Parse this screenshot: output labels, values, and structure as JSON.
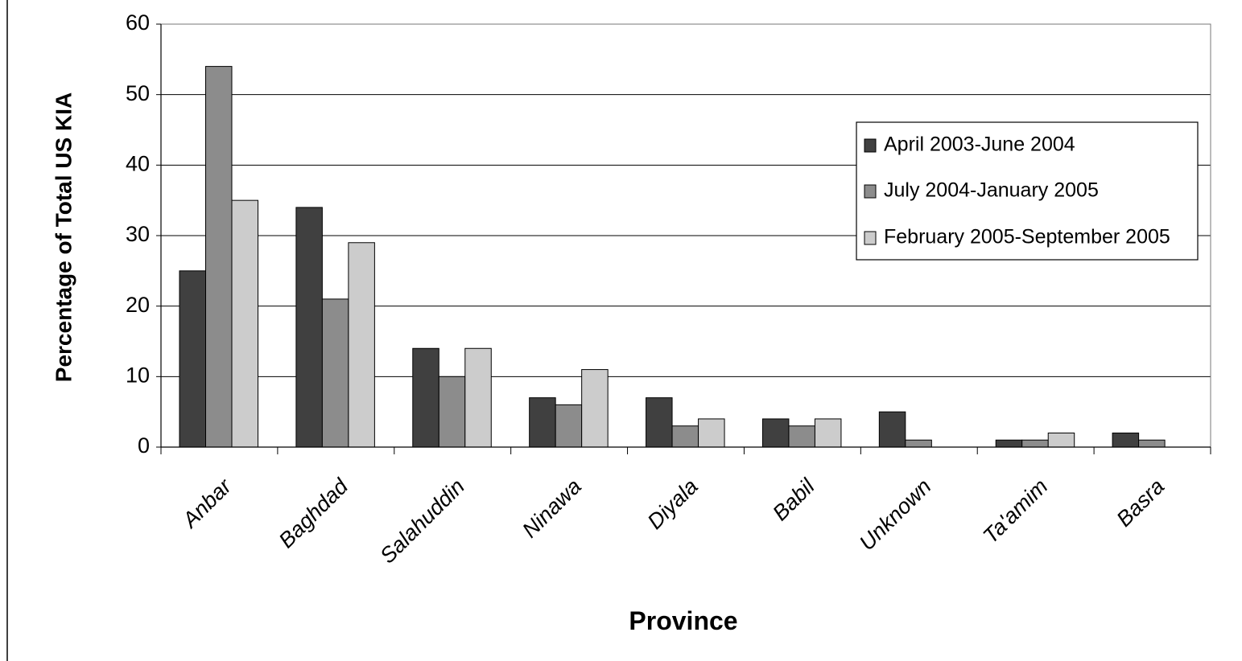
{
  "chart_data": {
    "type": "bar",
    "title": "",
    "xlabel": "Province",
    "ylabel": "Percentage of Total US KIA",
    "ylim": [
      0,
      60
    ],
    "yticks": [
      0,
      10,
      20,
      30,
      40,
      50,
      60
    ],
    "grid": true,
    "legend_position": "right",
    "categories": [
      "Anbar",
      "Baghdad",
      "Salahuddin",
      "Ninawa",
      "Diyala",
      "Babil",
      "Unknown",
      "Ta'amim",
      "Basra"
    ],
    "series": [
      {
        "name": "April 2003-June 2004",
        "color": "#404040",
        "values": [
          25,
          34,
          14,
          7,
          7,
          4,
          5,
          1,
          2
        ]
      },
      {
        "name": "July 2004-January 2005",
        "color": "#8c8c8c",
        "values": [
          54,
          21,
          10,
          6,
          3,
          3,
          1,
          1,
          1
        ]
      },
      {
        "name": "February 2005-September 2005",
        "color": "#cccccc",
        "values": [
          35,
          29,
          14,
          11,
          4,
          4,
          0,
          2,
          0
        ]
      }
    ]
  }
}
